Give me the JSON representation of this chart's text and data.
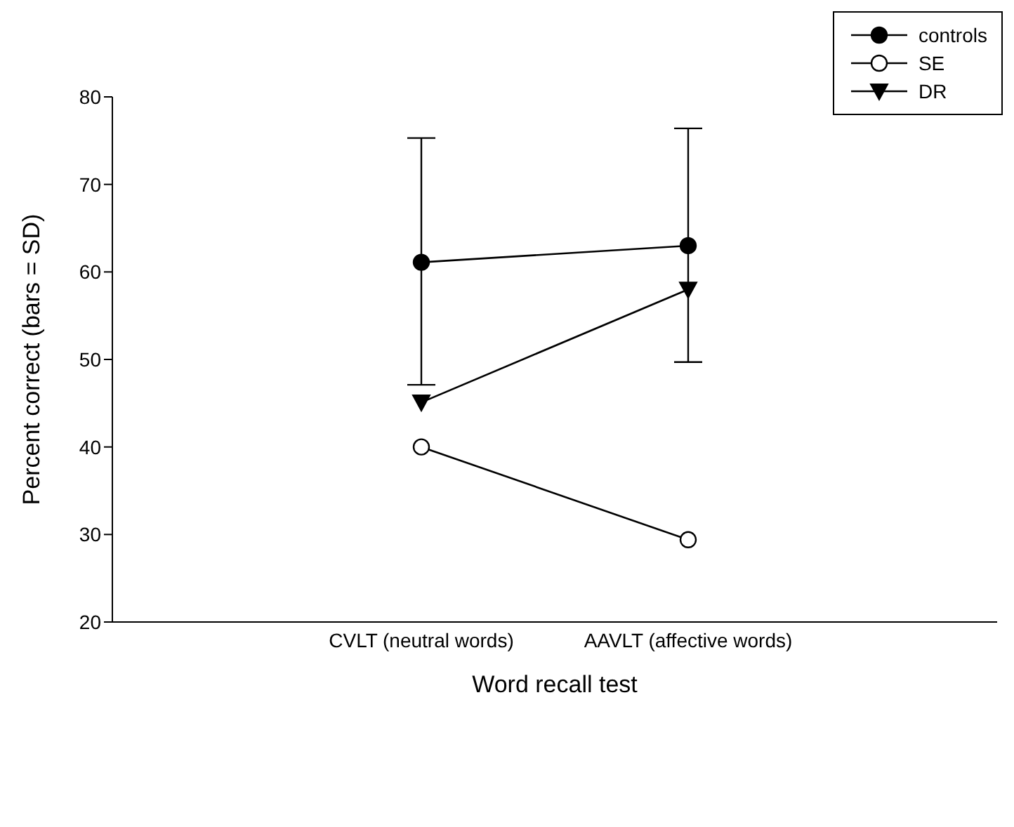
{
  "chart_data": {
    "type": "line",
    "xlabel": "Word recall test",
    "ylabel": "Percent correct (bars = SD)",
    "categories": [
      "CVLT (neutral words)",
      "AAVLT (affective words)"
    ],
    "series": [
      {
        "name": "controls",
        "color": "#000000",
        "marker": "circle",
        "values": [
          61.1,
          63
        ],
        "errors": [
          [
            47.1,
            75.3
          ],
          [
            49.7,
            76.4
          ]
        ]
      },
      {
        "name": "SE",
        "color": "#000000",
        "marker": "circle-open",
        "values": [
          40,
          29.4
        ]
      },
      {
        "name": "DR",
        "color": "#000000",
        "marker": "triangle-down",
        "values": [
          45.1,
          58
        ]
      }
    ],
    "ylim": [
      20,
      80
    ],
    "yticks": [
      20,
      30,
      40,
      50,
      60,
      70,
      80
    ],
    "grid": false,
    "legend": "top right",
    "line_style": "solid"
  }
}
